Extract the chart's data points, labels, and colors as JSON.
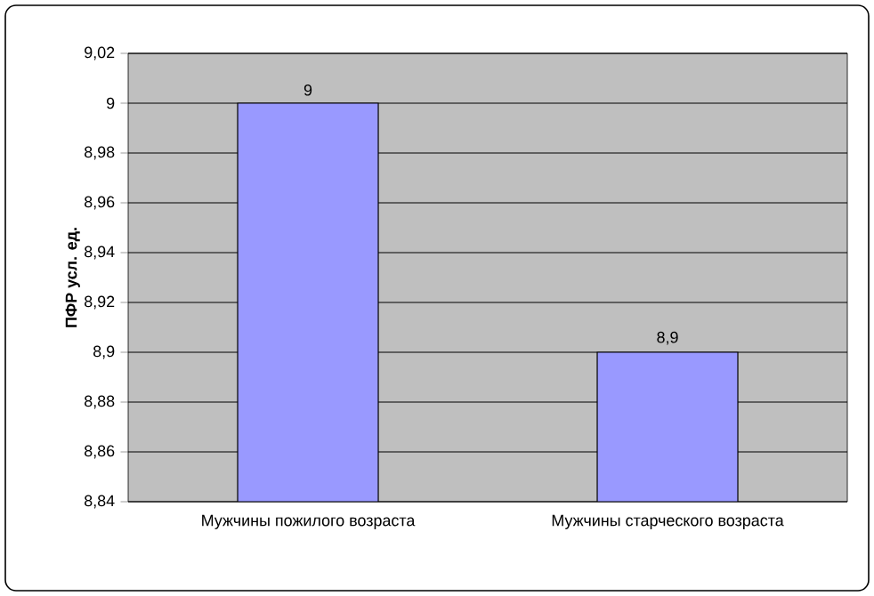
{
  "chart_data": {
    "type": "bar",
    "ylabel": "ПФР усл. ед.",
    "categories": [
      "Мужчины пожилого возраста",
      "Мужчины старческого возраста"
    ],
    "values": [
      9,
      8.9
    ],
    "value_labels": [
      "9",
      "8,9"
    ],
    "color": "#9999ff",
    "ylim": [
      8.84,
      9.02
    ],
    "yticks": [
      {
        "value": 8.84,
        "label": "8,84"
      },
      {
        "value": 8.86,
        "label": "8,86"
      },
      {
        "value": 8.88,
        "label": "8,88"
      },
      {
        "value": 8.9,
        "label": "8,9"
      },
      {
        "value": 8.92,
        "label": "8,92"
      },
      {
        "value": 8.94,
        "label": "8,94"
      },
      {
        "value": 8.96,
        "label": "8,96"
      },
      {
        "value": 8.98,
        "label": "8,98"
      },
      {
        "value": 9,
        "label": "9"
      },
      {
        "value": 9.02,
        "label": "9,02"
      }
    ],
    "grid": "y"
  }
}
